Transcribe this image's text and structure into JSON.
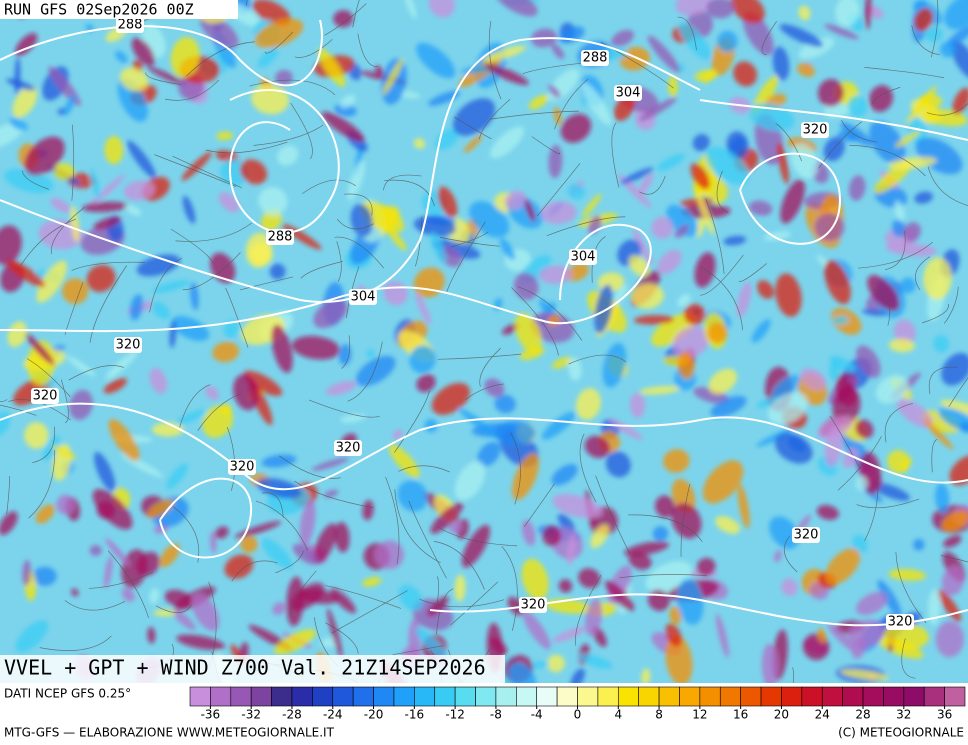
{
  "header": {
    "run": "RUN GFS 02Sep2026 00Z"
  },
  "contour_labels": [
    "288",
    "288",
    "304",
    "320",
    "288",
    "304",
    "304",
    "320",
    "320",
    "320",
    "320",
    "320",
    "320",
    "320"
  ],
  "map_title": "VVEL + GPT + WIND Z700 Val. 21Z14SEP2026",
  "source": "DATI NCEP GFS 0.25°",
  "colorbar": {
    "lim": [
      -38,
      38
    ],
    "ticks": [
      -36,
      -32,
      -28,
      -24,
      -20,
      -16,
      -12,
      -8,
      -4,
      0,
      4,
      8,
      12,
      16,
      20,
      24,
      28,
      32,
      36
    ],
    "colors": [
      "#c890dc",
      "#b070c8",
      "#9658b4",
      "#7c44a0",
      "#3c2c8c",
      "#2a2ca8",
      "#2040c4",
      "#2058dc",
      "#2070ec",
      "#2088f4",
      "#20a0f8",
      "#28b8f8",
      "#38ccf4",
      "#58dcf0",
      "#80e8f0",
      "#a8f0f0",
      "#c8f8f4",
      "#e8fcf8",
      "#fcfcc8",
      "#fcf890",
      "#fcf050",
      "#f8e400",
      "#f8d400",
      "#f8c000",
      "#f8a800",
      "#f49000",
      "#f07800",
      "#ec5800",
      "#e43800",
      "#dc2010",
      "#cc1028",
      "#c01040",
      "#b00c50",
      "#a40c5c",
      "#980c64",
      "#8c0c68",
      "#a8307c",
      "#c060a0"
    ]
  },
  "footer": {
    "left": "MTG-GFS — ELABORAZIONE WWW.METEOGIORNALE.IT",
    "right": "(C) METEOGIORNALE"
  }
}
